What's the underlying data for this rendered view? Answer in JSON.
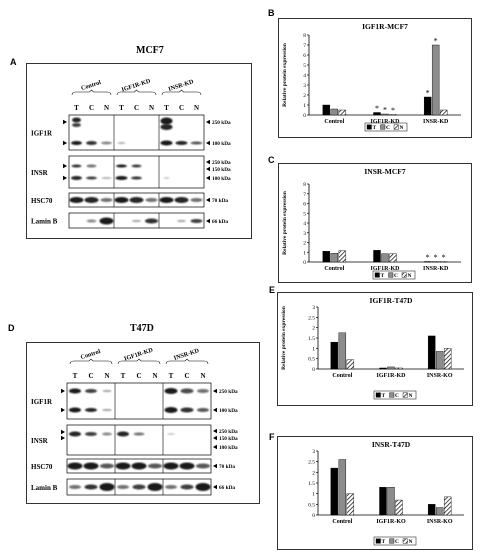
{
  "panel_labels": {
    "A": "A",
    "B": "B",
    "C": "C",
    "D": "D",
    "E": "E",
    "F": "F"
  },
  "blots": [
    {
      "id": "A",
      "title": "MCF7",
      "groups": [
        "Control",
        "IGF1R-KD",
        "INSR-KD"
      ],
      "lanes": [
        "T",
        "C",
        "N"
      ],
      "rows": [
        {
          "name": "IGF1R",
          "markers": [
            "250 kDa",
            "100 kDa"
          ]
        },
        {
          "name": "INSR",
          "markers": [
            "250 kDa",
            "150 kDa",
            "100 kDa"
          ]
        },
        {
          "name": "HSC70",
          "markers": [
            "70 kDa"
          ]
        },
        {
          "name": "Lamin B",
          "markers": [
            "66 kDa"
          ]
        }
      ]
    },
    {
      "id": "D",
      "title": "T47D",
      "groups": [
        "Control",
        "IGF1R-KD",
        "INSR-KD"
      ],
      "lanes": [
        "T",
        "C",
        "N"
      ],
      "rows": [
        {
          "name": "IGF1R",
          "markers": [
            "250 kDa",
            "100 kDa"
          ]
        },
        {
          "name": "INSR",
          "markers": [
            "250 kDa",
            "150 kDa",
            "100 kDa"
          ]
        },
        {
          "name": "HSC70",
          "markers": [
            "70 kDa"
          ]
        },
        {
          "name": "Lamin B",
          "markers": [
            "66 kDa"
          ]
        }
      ]
    }
  ],
  "chart_data": [
    {
      "id": "B",
      "type": "bar",
      "title": "IGF1R-MCF7",
      "ylabel": "Relative protein expression",
      "ylim": [
        0,
        8
      ],
      "yticks": [
        0,
        1,
        2,
        3,
        4,
        5,
        6,
        7,
        8
      ],
      "categories": [
        "Control",
        "IGF1R-KD",
        "INSR-KD"
      ],
      "series": [
        {
          "name": "T",
          "values": [
            1.0,
            0.25,
            1.8
          ]
        },
        {
          "name": "C",
          "values": [
            0.6,
            0.1,
            7.0
          ]
        },
        {
          "name": "N",
          "values": [
            0.5,
            0.05,
            0.5
          ]
        }
      ],
      "annotations": [
        "*",
        "*",
        "*",
        "*",
        "*"
      ],
      "legend": "bottom-right"
    },
    {
      "id": "C",
      "type": "bar",
      "title": "INSR-MCF7",
      "ylabel": "Relative protein expression",
      "ylim": [
        0,
        8
      ],
      "yticks": [
        0,
        1,
        2,
        3,
        4,
        5,
        6,
        7,
        8
      ],
      "categories": [
        "Control",
        "IGF1R-KD",
        "INSR-KD"
      ],
      "series": [
        {
          "name": "T",
          "values": [
            1.1,
            1.2,
            0.05
          ]
        },
        {
          "name": "C",
          "values": [
            0.9,
            0.85,
            0.05
          ]
        },
        {
          "name": "N",
          "values": [
            1.15,
            0.85,
            0.05
          ]
        }
      ],
      "annotations": [
        "*",
        "*",
        "*"
      ],
      "legend": "bottom-right"
    },
    {
      "id": "E",
      "type": "bar",
      "title": "IGF1R-T47D",
      "ylabel": "Relative protein expression",
      "ylim": [
        0,
        3
      ],
      "yticks": [
        0,
        0.5,
        1,
        1.5,
        2,
        2.5,
        3
      ],
      "categories": [
        "Control",
        "IGF1R-KD",
        "INSR-KO"
      ],
      "series": [
        {
          "name": "T",
          "values": [
            1.3,
            0.05,
            1.6
          ]
        },
        {
          "name": "C",
          "values": [
            1.75,
            0.1,
            0.85
          ]
        },
        {
          "name": "N",
          "values": [
            0.45,
            0.05,
            1.0
          ]
        }
      ],
      "legend": "bottom-right"
    },
    {
      "id": "F",
      "type": "bar",
      "title": "INSR-T47D",
      "ylabel": "",
      "ylim": [
        0,
        3
      ],
      "yticks": [
        0,
        0.5,
        1,
        1.5,
        2,
        2.5,
        3
      ],
      "categories": [
        "Control",
        "IGF1R-KO",
        "INSR-KO"
      ],
      "series": [
        {
          "name": "T",
          "values": [
            2.2,
            1.3,
            0.5
          ]
        },
        {
          "name": "C",
          "values": [
            2.6,
            1.3,
            0.35
          ]
        },
        {
          "name": "N",
          "values": [
            1.0,
            0.7,
            0.85
          ]
        }
      ],
      "legend": "bottom-right"
    }
  ]
}
